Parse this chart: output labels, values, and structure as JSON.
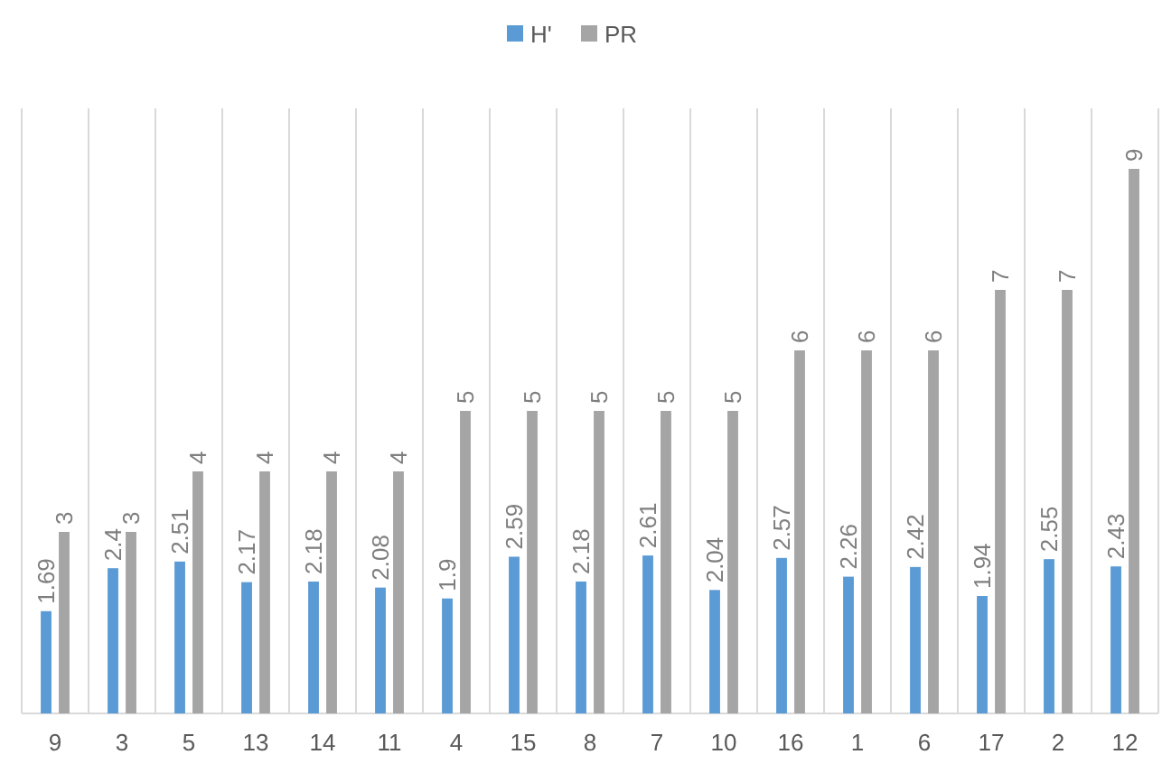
{
  "chart_data": {
    "type": "bar",
    "categories": [
      "9",
      "3",
      "5",
      "13",
      "14",
      "11",
      "4",
      "15",
      "8",
      "7",
      "10",
      "16",
      "1",
      "6",
      "17",
      "2",
      "12"
    ],
    "series": [
      {
        "name": "H'",
        "color": "#5b9bd5",
        "values": [
          1.69,
          2.4,
          2.51,
          2.17,
          2.18,
          2.08,
          1.9,
          2.59,
          2.18,
          2.61,
          2.04,
          2.57,
          2.26,
          2.42,
          1.94,
          2.55,
          2.43
        ]
      },
      {
        "name": "PR",
        "color": "#a5a5a5",
        "values": [
          3,
          3,
          4,
          4,
          4,
          4,
          5,
          5,
          5,
          5,
          5,
          6,
          6,
          6,
          7,
          7,
          9
        ]
      }
    ],
    "ylim": [
      0,
      10
    ],
    "tick_labels": "x",
    "grid": "x",
    "legend": "top",
    "data_labels": true
  }
}
